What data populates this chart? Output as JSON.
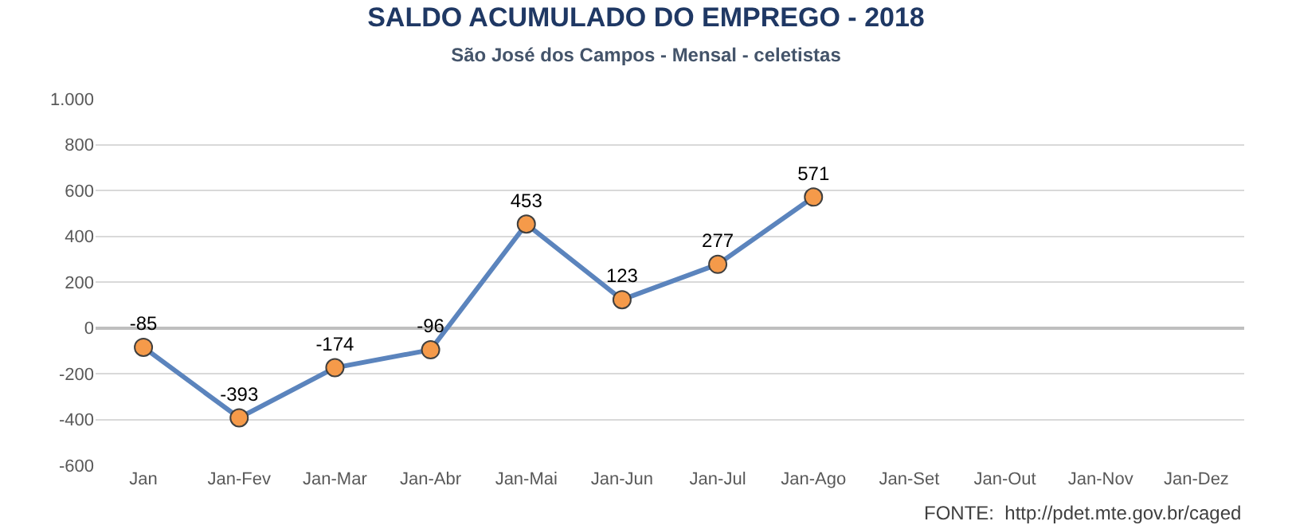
{
  "chart_data": {
    "type": "line",
    "title": "SALDO ACUMULADO DO EMPREGO - 2018",
    "subtitle": "São José dos Campos - Mensal - celetistas",
    "categories": [
      "Jan",
      "Jan-Fev",
      "Jan-Mar",
      "Jan-Abr",
      "Jan-Mai",
      "Jan-Jun",
      "Jan-Jul",
      "Jan-Ago",
      "Jan-Set",
      "Jan-Out",
      "Jan-Nov",
      "Jan-Dez"
    ],
    "series": [
      {
        "color": "#5b84bd",
        "values": [
          -85,
          -393,
          -174,
          -96,
          453,
          123,
          277,
          571,
          null,
          null,
          null,
          null
        ]
      }
    ],
    "ylim": [
      -600,
      1000
    ],
    "yticks": [
      -600,
      -400,
      -200,
      0,
      200,
      400,
      600,
      800,
      {
        "value": 1000,
        "label": "1.000"
      }
    ],
    "grid": "y",
    "marker": "circle",
    "line_style": "solid",
    "data_labels": true,
    "annotations": [
      "FONTE:  http://pdet.mte.gov.br/caged"
    ]
  }
}
